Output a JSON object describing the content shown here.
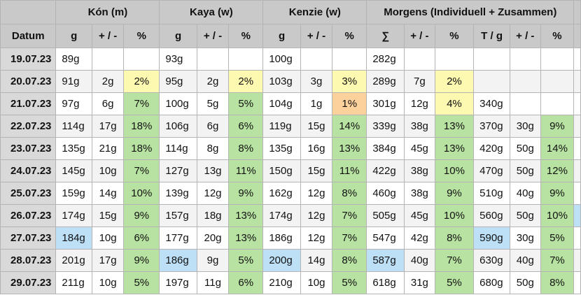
{
  "groups": [
    {
      "label": "",
      "span": 1
    },
    {
      "label": "Kón (m)",
      "span": 3
    },
    {
      "label": "Kaya (w)",
      "span": 3
    },
    {
      "label": "Kenzie (w)",
      "span": 3
    },
    {
      "label": "Morgens (Individuell + Zusammen)",
      "span": 6
    },
    {
      "label": "",
      "span": 1
    }
  ],
  "columns": [
    "Datum",
    "g",
    "+ / -",
    "%",
    "g",
    "+ / -",
    "%",
    "g",
    "+ / -",
    "%",
    "∑",
    "+ / -",
    "%",
    "T / g",
    "+ / -",
    "%",
    ""
  ],
  "colors": {
    "y": "#fdf9b1",
    "g": "#b8e2a2",
    "o": "#fdd19b",
    "b": "#bde0f7"
  },
  "rows": [
    {
      "date": "19.07.23",
      "cells": [
        "89g",
        "",
        "",
        "93g",
        "",
        "",
        "100g",
        "",
        "",
        "282g",
        "",
        "",
        "",
        "",
        ""
      ],
      "fill": "---------------"
    },
    {
      "date": "20.07.23",
      "cells": [
        "91g",
        "2g",
        "2%",
        "95g",
        "2g",
        "2%",
        "103g",
        "3g",
        "3%",
        "289g",
        "7g",
        "2%",
        "",
        "",
        ""
      ],
      "fill": "--y--y--y--y---"
    },
    {
      "date": "21.07.23",
      "cells": [
        "97g",
        "6g",
        "7%",
        "100g",
        "5g",
        "5%",
        "104g",
        "1g",
        "1%",
        "301g",
        "12g",
        "4%",
        "340g",
        "",
        ""
      ],
      "fill": "--g--g--o--y---"
    },
    {
      "date": "22.07.23",
      "cells": [
        "114g",
        "17g",
        "18%",
        "106g",
        "6g",
        "6%",
        "119g",
        "15g",
        "14%",
        "339g",
        "38g",
        "13%",
        "370g",
        "30g",
        "9%"
      ],
      "fill": "--g--g--g--g--g"
    },
    {
      "date": "23.07.23",
      "cells": [
        "135g",
        "21g",
        "18%",
        "114g",
        "8g",
        "8%",
        "135g",
        "16g",
        "13%",
        "384g",
        "45g",
        "13%",
        "420g",
        "50g",
        "14%"
      ],
      "fill": "--g--g--g--g--g"
    },
    {
      "date": "24.07.23",
      "cells": [
        "145g",
        "10g",
        "7%",
        "127g",
        "13g",
        "11%",
        "150g",
        "15g",
        "11%",
        "422g",
        "38g",
        "10%",
        "470g",
        "50g",
        "12%"
      ],
      "fill": "--g--g--g--g--g"
    },
    {
      "date": "25.07.23",
      "cells": [
        "159g",
        "14g",
        "10%",
        "139g",
        "12g",
        "9%",
        "162g",
        "12g",
        "8%",
        "460g",
        "38g",
        "9%",
        "510g",
        "40g",
        "9%"
      ],
      "fill": "--g--g--g--g--g"
    },
    {
      "date": "26.07.23",
      "cells": [
        "174g",
        "15g",
        "9%",
        "157g",
        "18g",
        "13%",
        "174g",
        "12g",
        "7%",
        "505g",
        "45g",
        "10%",
        "560g",
        "50g",
        "10%"
      ],
      "fill": "--g--g--g--g--g",
      "extra": "b"
    },
    {
      "date": "27.07.23",
      "cells": [
        "184g",
        "10g",
        "6%",
        "177g",
        "20g",
        "13%",
        "186g",
        "12g",
        "7%",
        "547g",
        "42g",
        "8%",
        "590g",
        "30g",
        "5%"
      ],
      "fill": "b-g--g--g--gb-g"
    },
    {
      "date": "28.07.23",
      "cells": [
        "201g",
        "17g",
        "9%",
        "186g",
        "9g",
        "5%",
        "200g",
        "14g",
        "8%",
        "587g",
        "40g",
        "7%",
        "630g",
        "40g",
        "7%"
      ],
      "fill": "--gb-gb-gb-g--g"
    },
    {
      "date": "29.07.23",
      "cells": [
        "211g",
        "10g",
        "5%",
        "197g",
        "11g",
        "6%",
        "210g",
        "10g",
        "5%",
        "618g",
        "31g",
        "5%",
        "680g",
        "50g",
        "8%"
      ],
      "fill": "--g--g--g--g--g"
    }
  ]
}
